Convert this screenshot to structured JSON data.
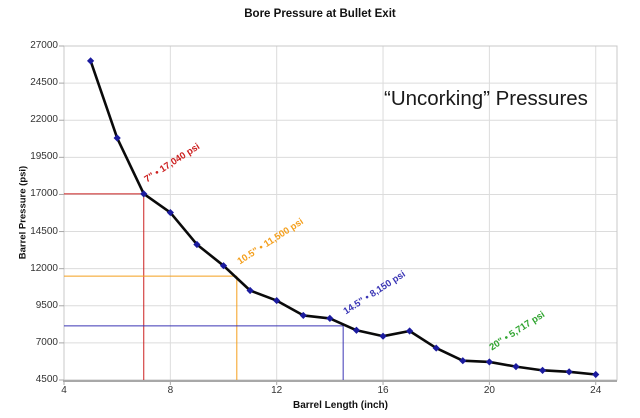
{
  "header": {
    "title": "Bore Pressure at Bullet Exit"
  },
  "big_label": "“Uncorking” Pressures",
  "chart_data": {
    "type": "line",
    "title": "Bore Pressure at Bullet Exit",
    "xlabel": "Barrel Length (inch)",
    "ylabel": "Barrel Pressure (psi)",
    "x": [
      5,
      6,
      7,
      8,
      9,
      10,
      11,
      12,
      13,
      14,
      15,
      16,
      17,
      18,
      19,
      20,
      21,
      22,
      23,
      24
    ],
    "values": [
      26000,
      20800,
      17040,
      15780,
      13630,
      12200,
      10530,
      9850,
      8850,
      8650,
      7850,
      7450,
      7800,
      6650,
      5800,
      5717,
      5400,
      5150,
      5050,
      4870
    ],
    "xlim": [
      4,
      24.8
    ],
    "ylim": [
      4500,
      27000
    ],
    "x_ticks": [
      4,
      8,
      12,
      16,
      20,
      24
    ],
    "y_ticks": [
      4500,
      7000,
      9500,
      12000,
      14500,
      17000,
      19500,
      22000,
      24500,
      27000
    ],
    "grid": true,
    "legend": "none",
    "line_color": "#0a0a0a",
    "marker_color": "#1b1b9e",
    "grid_color": "#dcdcdc",
    "border_color": "#c8c8c8",
    "axis_color": "#a8a8a8",
    "annotations": [
      {
        "label": "7\" • 17,040 psi",
        "x": 7,
        "y": 17040,
        "color": "#cc2020",
        "crosshair": true
      },
      {
        "label": "10.5\" • 11,500 psi",
        "x": 10.5,
        "y": 11500,
        "color": "#f49f1c",
        "crosshair": true
      },
      {
        "label": "14.5\" • 8,150 psi",
        "x": 14.5,
        "y": 8150,
        "color": "#3a35b5",
        "crosshair": true
      },
      {
        "label": "20\" • 5,717 psi",
        "x": 20,
        "y": 5717,
        "color": "#2fa42f",
        "crosshair": false
      }
    ]
  }
}
